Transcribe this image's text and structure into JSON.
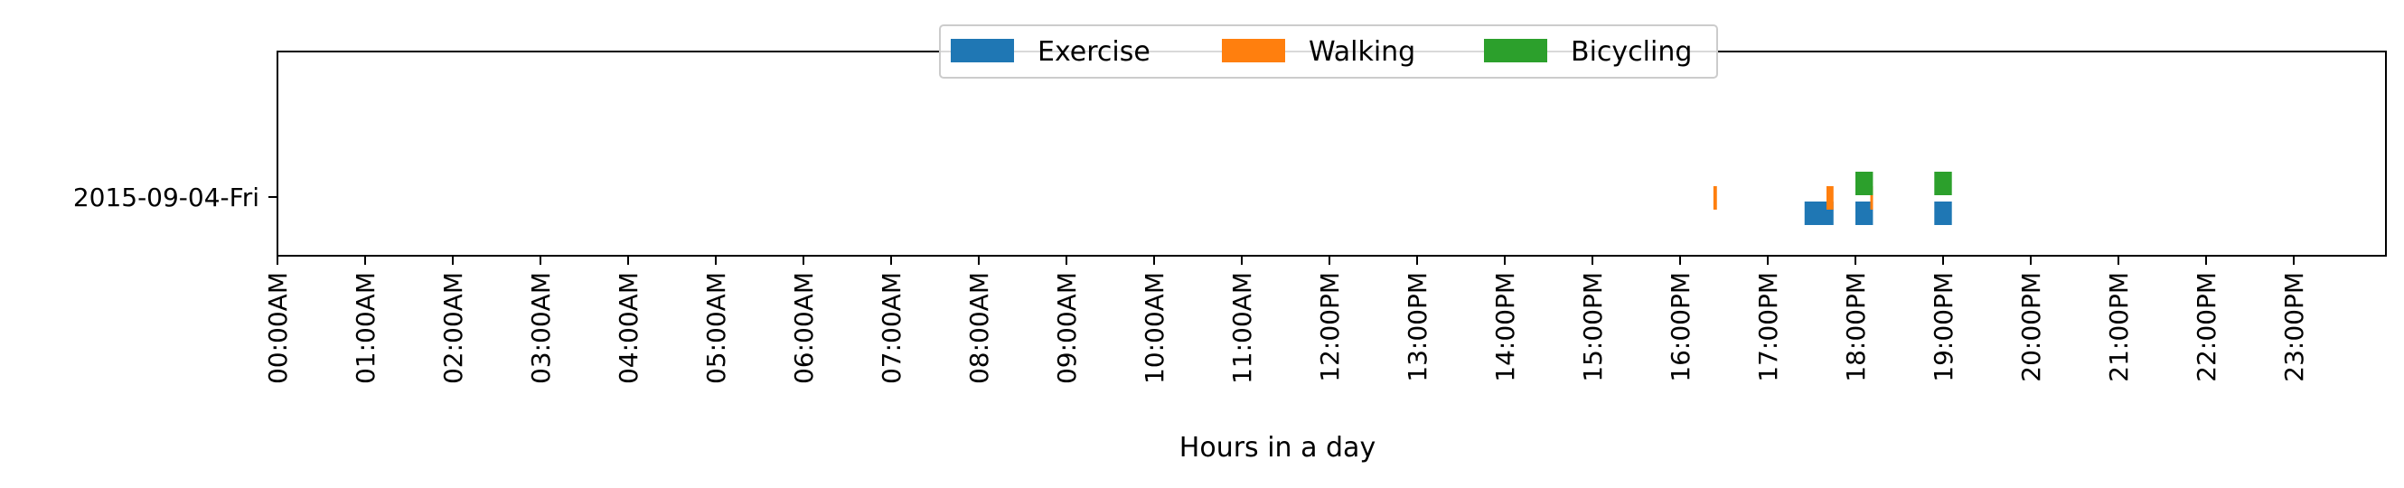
{
  "chart_data": {
    "type": "bar",
    "orientation": "horizontal-timeline",
    "title": "",
    "xlabel": "Hours in a day",
    "ylabel": "",
    "xlim": [
      0,
      24
    ],
    "x_ticks": [
      "00:00AM",
      "01:00AM",
      "02:00AM",
      "03:00AM",
      "04:00AM",
      "05:00AM",
      "06:00AM",
      "07:00AM",
      "08:00AM",
      "09:00AM",
      "10:00AM",
      "11:00AM",
      "12:00PM",
      "13:00PM",
      "14:00PM",
      "15:00PM",
      "16:00PM",
      "17:00PM",
      "18:00PM",
      "19:00PM",
      "20:00PM",
      "21:00PM",
      "22:00PM",
      "23:00PM"
    ],
    "categories": [
      "2015-09-04-Fri"
    ],
    "grid": false,
    "legend_position": "top-center",
    "series": [
      {
        "name": "Exercise",
        "color": "#1f77b4",
        "intervals": [
          {
            "day": "2015-09-04-Fri",
            "start": 17.42,
            "end": 17.75
          },
          {
            "day": "2015-09-04-Fri",
            "start": 18.0,
            "end": 18.2
          },
          {
            "day": "2015-09-04-Fri",
            "start": 18.9,
            "end": 19.1
          }
        ]
      },
      {
        "name": "Walking",
        "color": "#ff7f0e",
        "intervals": [
          {
            "day": "2015-09-04-Fri",
            "start": 16.38,
            "end": 16.42
          },
          {
            "day": "2015-09-04-Fri",
            "start": 17.67,
            "end": 17.75
          },
          {
            "day": "2015-09-04-Fri",
            "start": 18.17,
            "end": 18.2
          }
        ]
      },
      {
        "name": "Bicycling",
        "color": "#2ca02c",
        "intervals": [
          {
            "day": "2015-09-04-Fri",
            "start": 18.0,
            "end": 18.2
          },
          {
            "day": "2015-09-04-Fri",
            "start": 18.9,
            "end": 19.1
          }
        ]
      }
    ]
  }
}
